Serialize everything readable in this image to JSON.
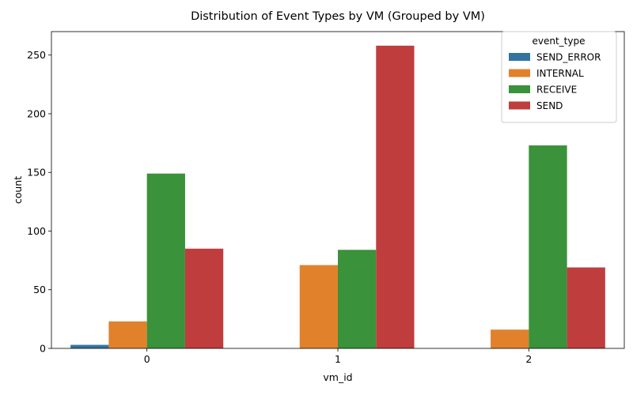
{
  "chart_data": {
    "type": "bar",
    "title": "Distribution of Event Types by VM (Grouped by VM)",
    "xlabel": "vm_id",
    "ylabel": "count",
    "categories": [
      "0",
      "1",
      "2"
    ],
    "ylim": [
      0,
      270
    ],
    "yticks": [
      0,
      50,
      100,
      150,
      200,
      250
    ],
    "grid": false,
    "legend": {
      "title": "event_type",
      "placement": "top-right"
    },
    "series": [
      {
        "name": "SEND_ERROR",
        "color": "#3274a1",
        "values": [
          3,
          0,
          0
        ]
      },
      {
        "name": "INTERNAL",
        "color": "#e1812c",
        "values": [
          23,
          71,
          16
        ]
      },
      {
        "name": "RECEIVE",
        "color": "#3a923a",
        "values": [
          149,
          84,
          173
        ]
      },
      {
        "name": "SEND",
        "color": "#c03d3e",
        "values": [
          85,
          258,
          69
        ]
      }
    ]
  }
}
